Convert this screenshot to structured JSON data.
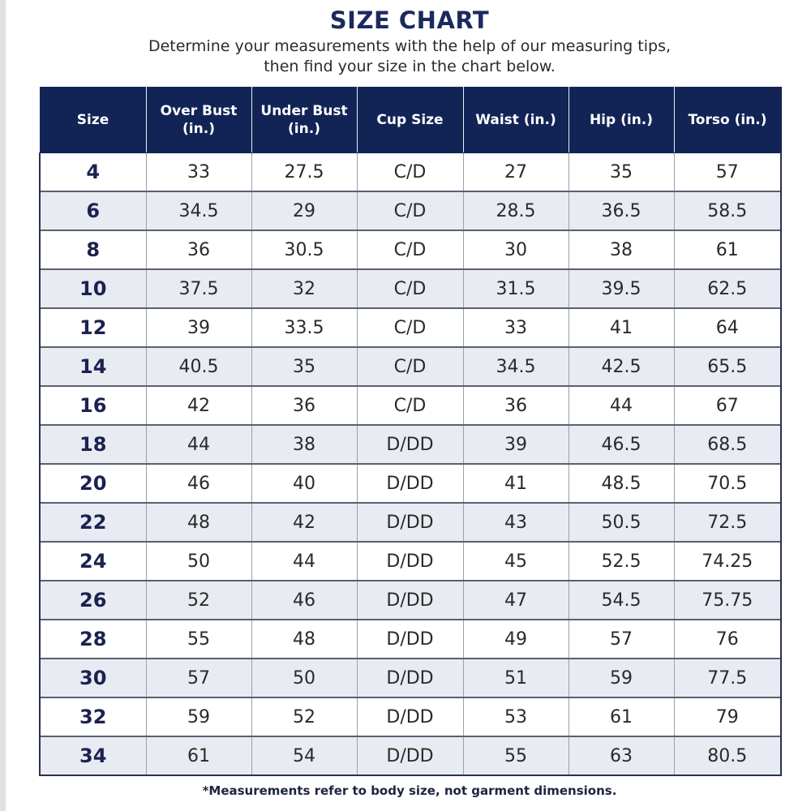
{
  "title": "SIZE CHART",
  "subtitle": {
    "line1": "Determine your measurements with the help of our measuring tips,",
    "line2": "then find your size in the chart below."
  },
  "table": {
    "headers": [
      {
        "line1": "Size",
        "line2": ""
      },
      {
        "line1": "Over Bust",
        "line2": "(in.)"
      },
      {
        "line1": "Under Bust",
        "line2": "(in.)"
      },
      {
        "line1": "Cup Size",
        "line2": ""
      },
      {
        "line1": "Waist (in.)",
        "line2": ""
      },
      {
        "line1": "Hip (in.)",
        "line2": ""
      },
      {
        "line1": "Torso (in.)",
        "line2": ""
      }
    ],
    "rows": [
      [
        "4",
        "33",
        "27.5",
        "C/D",
        "27",
        "35",
        "57"
      ],
      [
        "6",
        "34.5",
        "29",
        "C/D",
        "28.5",
        "36.5",
        "58.5"
      ],
      [
        "8",
        "36",
        "30.5",
        "C/D",
        "30",
        "38",
        "61"
      ],
      [
        "10",
        "37.5",
        "32",
        "C/D",
        "31.5",
        "39.5",
        "62.5"
      ],
      [
        "12",
        "39",
        "33.5",
        "C/D",
        "33",
        "41",
        "64"
      ],
      [
        "14",
        "40.5",
        "35",
        "C/D",
        "34.5",
        "42.5",
        "65.5"
      ],
      [
        "16",
        "42",
        "36",
        "C/D",
        "36",
        "44",
        "67"
      ],
      [
        "18",
        "44",
        "38",
        "D/DD",
        "39",
        "46.5",
        "68.5"
      ],
      [
        "20",
        "46",
        "40",
        "D/DD",
        "41",
        "48.5",
        "70.5"
      ],
      [
        "22",
        "48",
        "42",
        "D/DD",
        "43",
        "50.5",
        "72.5"
      ],
      [
        "24",
        "50",
        "44",
        "D/DD",
        "45",
        "52.5",
        "74.25"
      ],
      [
        "26",
        "52",
        "46",
        "D/DD",
        "47",
        "54.5",
        "75.75"
      ],
      [
        "28",
        "55",
        "48",
        "D/DD",
        "49",
        "57",
        "76"
      ],
      [
        "30",
        "57",
        "50",
        "D/DD",
        "51",
        "59",
        "77.5"
      ],
      [
        "32",
        "59",
        "52",
        "D/DD",
        "53",
        "61",
        "79"
      ],
      [
        "34",
        "61",
        "54",
        "D/DD",
        "55",
        "63",
        "80.5"
      ]
    ]
  },
  "footnote": "*Measurements refer to body size, not garment dimensions.",
  "colors": {
    "header_background": "#122456",
    "title_text": "#1b2a5e",
    "alternate_row": "#e9ebf2"
  }
}
